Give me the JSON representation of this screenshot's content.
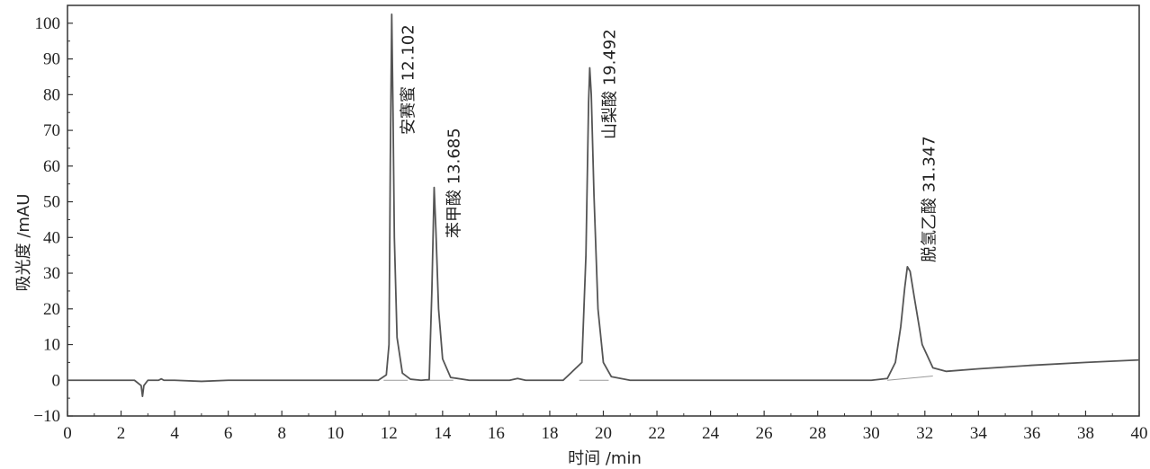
{
  "chart_data": {
    "type": "line",
    "xlabel": "时间 /min",
    "ylabel": "吸光度 /mAU",
    "xlim": [
      0,
      40
    ],
    "ylim": [
      -10,
      105
    ],
    "x_ticks": [
      0,
      2,
      4,
      6,
      8,
      10,
      12,
      14,
      16,
      18,
      20,
      22,
      24,
      26,
      28,
      30,
      32,
      34,
      36,
      38,
      40
    ],
    "y_ticks": [
      -10,
      0,
      10,
      20,
      30,
      40,
      50,
      60,
      70,
      80,
      90,
      100
    ],
    "grid": false,
    "legend": "none",
    "line_color": "#555555",
    "series": [
      {
        "x": [
          0,
          1.5,
          2.5,
          2.75,
          2.8,
          2.85,
          3.0,
          3.4,
          3.5,
          3.6,
          4.0,
          5.0,
          6.0,
          8.0,
          10.0,
          11.6,
          11.9,
          12.0,
          12.05,
          12.102,
          12.15,
          12.2,
          12.3,
          12.5,
          12.8,
          13.2,
          13.5,
          13.6,
          13.685,
          13.75,
          13.85,
          14.0,
          14.3,
          15.0,
          16.5,
          16.8,
          17.1,
          18.5,
          19.2,
          19.35,
          19.45,
          19.492,
          19.55,
          19.65,
          19.8,
          20.0,
          20.3,
          21.0,
          25.0,
          30.0,
          30.6,
          30.9,
          31.1,
          31.25,
          31.347,
          31.45,
          31.6,
          31.9,
          32.3,
          32.8,
          34.0,
          36.0,
          38.0,
          40.0
        ],
        "y": [
          0,
          0,
          0,
          -1.5,
          -4.5,
          -1.5,
          0,
          0,
          0.4,
          0,
          0,
          -0.3,
          0,
          0,
          0,
          0,
          1.5,
          10,
          62,
          102.5,
          75,
          40,
          12,
          2,
          0.3,
          0,
          0.2,
          25,
          54,
          42,
          20,
          6,
          0.8,
          0,
          0,
          0.5,
          0,
          0,
          5,
          35,
          78,
          87.5,
          80,
          52,
          20,
          5,
          1,
          0,
          0,
          0,
          0.5,
          5,
          15,
          26,
          31.8,
          30.5,
          23.5,
          10,
          3.5,
          2.5,
          3.2,
          4.2,
          5,
          5.7
        ]
      }
    ],
    "annotations": [
      {
        "text": "安赛蜜 12.102",
        "x": 12.102
      },
      {
        "text": "苯甲酸 13.685",
        "x": 13.685
      },
      {
        "text": "山梨酸 19.492",
        "x": 19.492
      },
      {
        "text": "脱氢乙酸 31.347",
        "x": 31.347
      }
    ]
  }
}
